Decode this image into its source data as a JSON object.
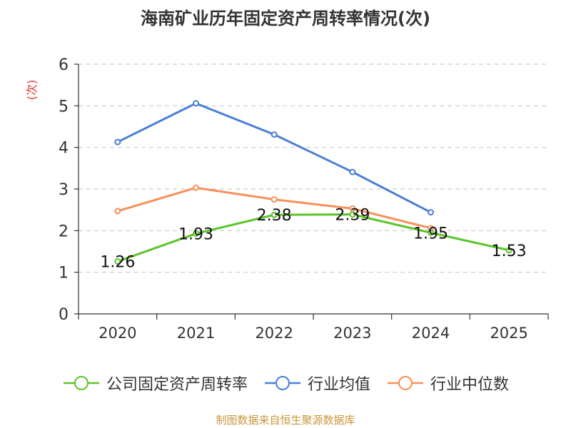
{
  "chart_data": {
    "type": "line",
    "title": "海南矿业历年固定资产周转率情况(次)",
    "ylabel": "(次)",
    "xlabel": "",
    "categories": [
      "2020",
      "2021",
      "2022",
      "2023",
      "2024",
      "2025"
    ],
    "ylim": [
      0,
      6
    ],
    "yticks": [
      "0",
      "1",
      "2",
      "3",
      "4",
      "5",
      "6"
    ],
    "grid": true,
    "legend_position": "bottom",
    "series": [
      {
        "name": "公司固定资产周转率",
        "color": "#5cc42a",
        "values": [
          1.26,
          1.93,
          2.38,
          2.39,
          1.95,
          1.53
        ],
        "labels": [
          "1.26",
          "1.93",
          "2.38",
          "2.39",
          "1.95",
          "1.53"
        ]
      },
      {
        "name": "行业均值",
        "color": "#4a7fd8",
        "values": [
          4.13,
          5.06,
          4.31,
          3.41,
          2.44,
          null
        ]
      },
      {
        "name": "行业中位数",
        "color": "#f7905a",
        "values": [
          2.47,
          3.03,
          2.75,
          2.53,
          2.06,
          null
        ]
      }
    ]
  },
  "source": "制图数据来自恒生聚源数据库"
}
